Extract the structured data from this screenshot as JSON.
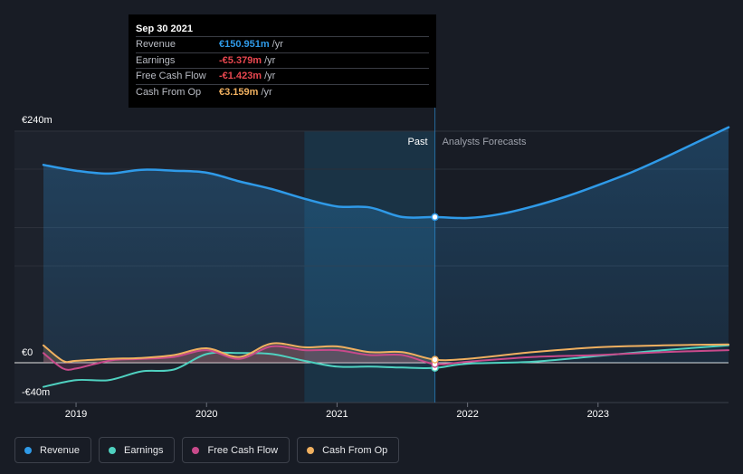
{
  "tooltip": {
    "date": "Sep 30 2021",
    "rows": [
      {
        "label": "Revenue",
        "value": "€150.951m",
        "unit": "/yr",
        "color": "#2f9ae8"
      },
      {
        "label": "Earnings",
        "value": "-€5.379m",
        "unit": "/yr",
        "color": "#e8474f"
      },
      {
        "label": "Free Cash Flow",
        "value": "-€1.423m",
        "unit": "/yr",
        "color": "#e8474f"
      },
      {
        "label": "Cash From Op",
        "value": "€3.159m",
        "unit": "/yr",
        "color": "#f0b060"
      }
    ]
  },
  "labels": {
    "past": "Past",
    "forecast": "Analysts Forecasts"
  },
  "chart_data": {
    "type": "line",
    "y_ticks": [
      {
        "value": 240,
        "label": "€240m"
      },
      {
        "value": 0,
        "label": "€0"
      },
      {
        "value": -40,
        "label": "-€40m"
      }
    ],
    "ylim": [
      -40,
      240
    ],
    "xlim": [
      2018.75,
      2024.0
    ],
    "x_ticks": [
      2019,
      2020,
      2021,
      2022,
      2023
    ],
    "x_tick_labels": [
      "2019",
      "2020",
      "2021",
      "2022",
      "2023"
    ],
    "past_end": 2021.75,
    "highlight_start": 2020.75,
    "grid": true,
    "legend_position": "bottom-left",
    "series": [
      {
        "name": "Revenue",
        "color": "#2f9ae8",
        "fill": true,
        "points": [
          [
            2018.75,
            205
          ],
          [
            2019.0,
            199
          ],
          [
            2019.25,
            196
          ],
          [
            2019.5,
            200
          ],
          [
            2019.75,
            199
          ],
          [
            2020.0,
            197
          ],
          [
            2020.25,
            188
          ],
          [
            2020.5,
            180
          ],
          [
            2020.75,
            170
          ],
          [
            2021.0,
            162
          ],
          [
            2021.25,
            161
          ],
          [
            2021.5,
            151
          ],
          [
            2021.75,
            151
          ],
          [
            2022.0,
            150
          ],
          [
            2022.25,
            154
          ],
          [
            2022.5,
            162
          ],
          [
            2022.75,
            172
          ],
          [
            2023.0,
            184
          ],
          [
            2023.25,
            197
          ],
          [
            2023.5,
            212
          ],
          [
            2023.75,
            228
          ],
          [
            2024.0,
            244
          ]
        ]
      },
      {
        "name": "Earnings",
        "color": "#4fd1c0",
        "points": [
          [
            2018.75,
            -25
          ],
          [
            2019.0,
            -18
          ],
          [
            2019.25,
            -18
          ],
          [
            2019.5,
            -9
          ],
          [
            2019.75,
            -7
          ],
          [
            2020.0,
            9
          ],
          [
            2020.25,
            10
          ],
          [
            2020.5,
            9
          ],
          [
            2020.75,
            2
          ],
          [
            2021.0,
            -4
          ],
          [
            2021.25,
            -4
          ],
          [
            2021.5,
            -5
          ],
          [
            2021.75,
            -5.4
          ],
          [
            2022.0,
            -1
          ],
          [
            2022.5,
            1
          ],
          [
            2023.0,
            7
          ],
          [
            2023.5,
            13
          ],
          [
            2024.0,
            18
          ]
        ]
      },
      {
        "name": "Free Cash Flow",
        "color": "#c84a8b",
        "points": [
          [
            2018.75,
            10
          ],
          [
            2018.9,
            -6
          ],
          [
            2019.0,
            -6
          ],
          [
            2019.15,
            -1
          ],
          [
            2019.3,
            3
          ],
          [
            2019.5,
            4
          ],
          [
            2019.75,
            6
          ],
          [
            2020.0,
            13
          ],
          [
            2020.25,
            4
          ],
          [
            2020.5,
            17
          ],
          [
            2020.75,
            13
          ],
          [
            2021.0,
            13
          ],
          [
            2021.25,
            8
          ],
          [
            2021.5,
            8
          ],
          [
            2021.75,
            -1.4
          ],
          [
            2022.0,
            1
          ],
          [
            2022.5,
            6
          ],
          [
            2023.0,
            8
          ],
          [
            2023.5,
            11
          ],
          [
            2024.0,
            13
          ]
        ]
      },
      {
        "name": "Cash From Op",
        "color": "#f0b060",
        "points": [
          [
            2018.75,
            18
          ],
          [
            2018.9,
            2
          ],
          [
            2019.0,
            2
          ],
          [
            2019.25,
            4
          ],
          [
            2019.5,
            5
          ],
          [
            2019.75,
            8
          ],
          [
            2020.0,
            15
          ],
          [
            2020.25,
            6
          ],
          [
            2020.5,
            20
          ],
          [
            2020.75,
            16
          ],
          [
            2021.0,
            17
          ],
          [
            2021.25,
            11
          ],
          [
            2021.5,
            11
          ],
          [
            2021.75,
            3.2
          ],
          [
            2022.0,
            4
          ],
          [
            2022.5,
            11
          ],
          [
            2023.0,
            16
          ],
          [
            2023.5,
            18
          ],
          [
            2024.0,
            19
          ]
        ]
      }
    ]
  },
  "legend": [
    {
      "label": "Revenue",
      "color": "#2f9ae8"
    },
    {
      "label": "Earnings",
      "color": "#4fd1c0"
    },
    {
      "label": "Free Cash Flow",
      "color": "#c84a8b"
    },
    {
      "label": "Cash From Op",
      "color": "#f0b060"
    }
  ]
}
